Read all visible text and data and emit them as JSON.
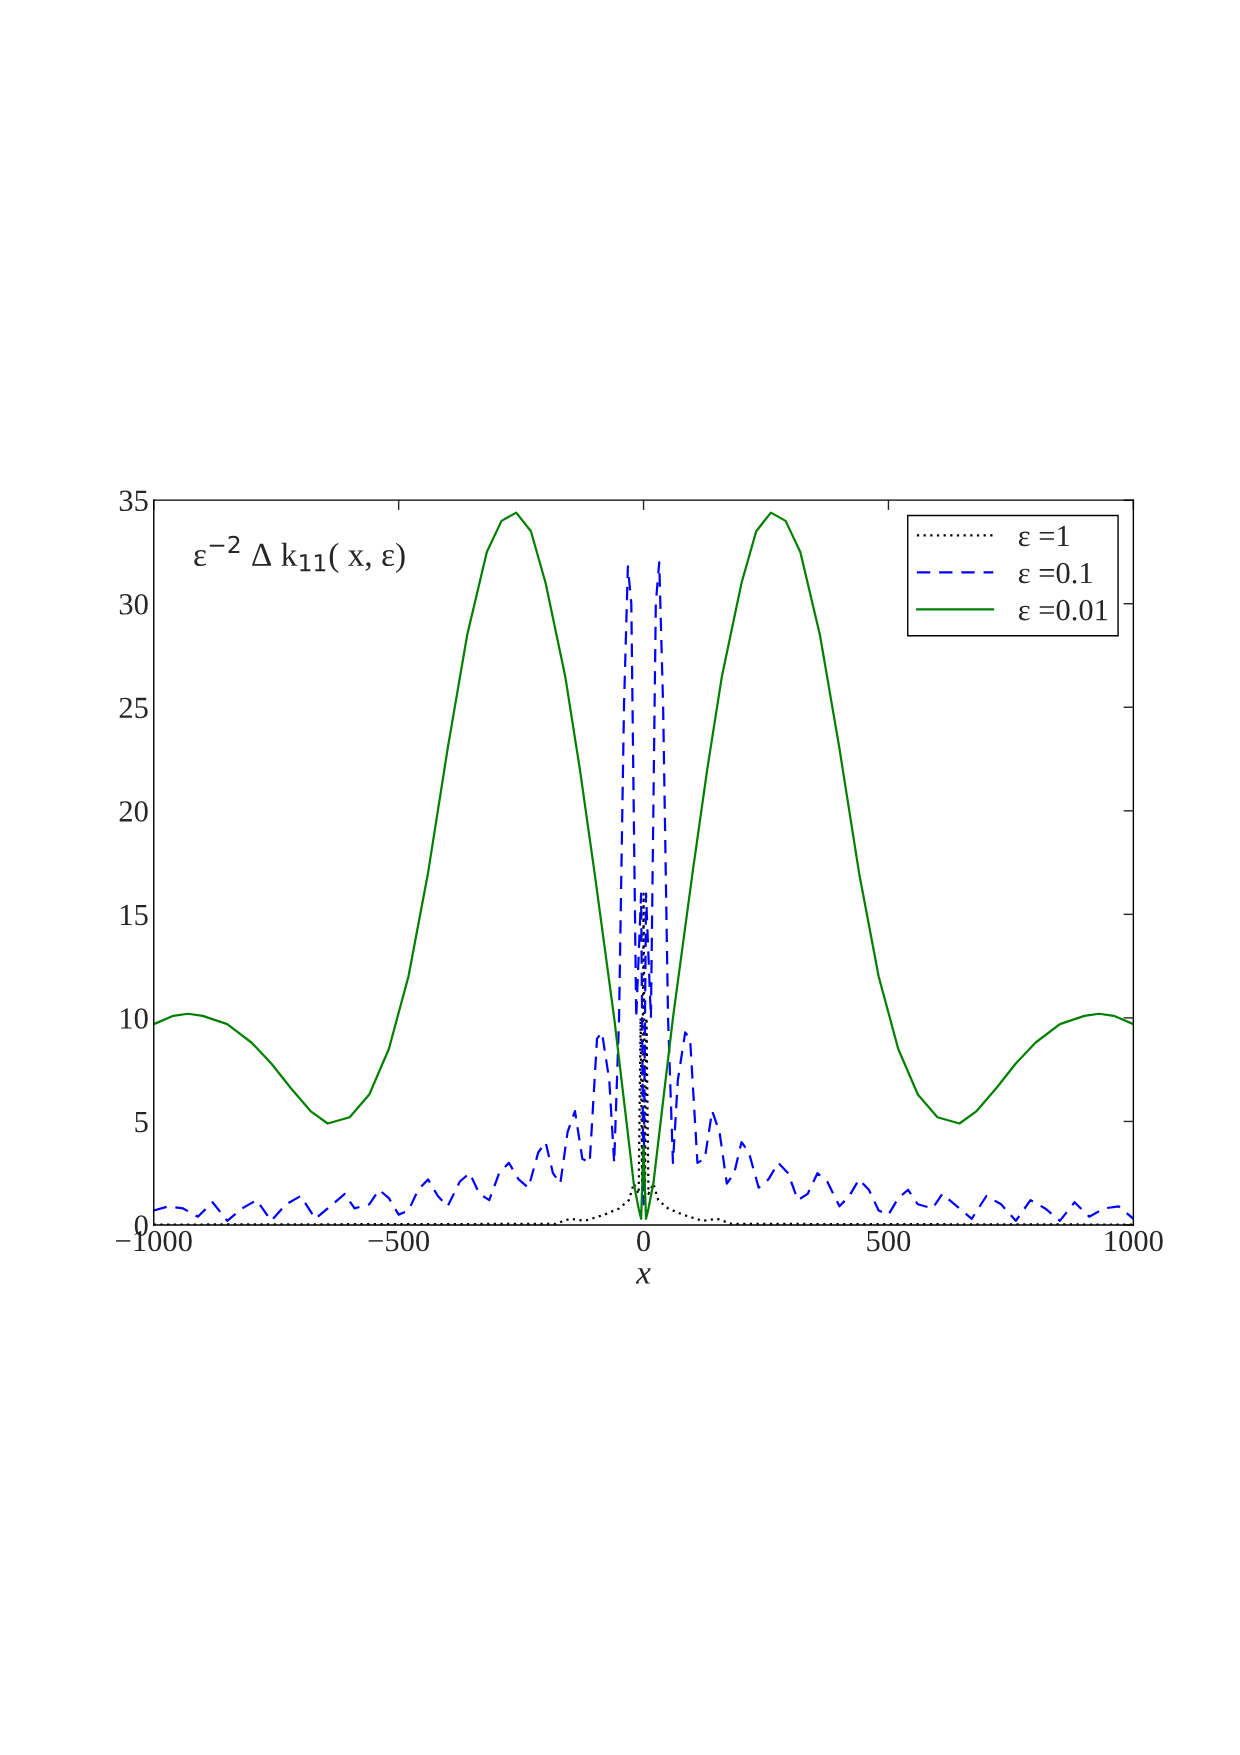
{
  "chart_data": {
    "type": "line",
    "xlabel": "x",
    "annotations": [
      "ε$^{−2}$ Δ k$_{11}$( x, ε)"
    ],
    "xlim": [
      -1000,
      1000
    ],
    "ylim": [
      0,
      35
    ],
    "xticks": [
      {
        "value": -1000,
        "label": "−1000"
      },
      {
        "value": -500,
        "label": "−500"
      },
      0,
      500,
      1000
    ],
    "yticks": [
      0,
      5,
      10,
      15,
      20,
      25,
      30,
      35
    ],
    "grid": false,
    "legend": "top right",
    "series": [
      {
        "name": "ε =1",
        "color": "#000000",
        "line_style": "dotted",
        "x": [
          -1000,
          -300,
          -180,
          -150,
          -120,
          -80,
          -50,
          -30,
          -20,
          -10,
          -6,
          -3,
          0,
          3,
          6,
          10,
          20,
          30,
          50,
          80,
          120,
          150,
          180,
          300,
          1000
        ],
        "values": [
          0.02,
          0.05,
          0.05,
          0.3,
          0.2,
          0.5,
          0.8,
          1.2,
          2,
          1.5,
          10,
          2,
          16,
          2,
          10,
          1.5,
          2,
          1.2,
          0.8,
          0.5,
          0.2,
          0.3,
          0.05,
          0.05,
          0.02
        ]
      },
      {
        "name": "ε =0.1",
        "color": "#0000ff",
        "line_style": "dashed",
        "x": [
          -1000,
          -970,
          -940,
          -910,
          -880,
          -850,
          -820,
          -790,
          -760,
          -730,
          -700,
          -670,
          -640,
          -610,
          -590,
          -560,
          -540,
          -520,
          -500,
          -480,
          -460,
          -440,
          -420,
          -400,
          -375,
          -355,
          -335,
          -315,
          -295,
          -275,
          -255,
          -235,
          -215,
          -200,
          -185,
          -170,
          -155,
          -140,
          -125,
          -110,
          -95,
          -85,
          -70,
          -60,
          -50,
          -40,
          -32,
          -25,
          -15,
          -5,
          0,
          5,
          15,
          25,
          32,
          40,
          50,
          60,
          70,
          85,
          95,
          110,
          125,
          140,
          155,
          170,
          185,
          200,
          215,
          235,
          255,
          275,
          295,
          315,
          335,
          355,
          375,
          400,
          420,
          440,
          460,
          480,
          500,
          520,
          540,
          560,
          590,
          610,
          640,
          670,
          700,
          730,
          760,
          790,
          820,
          850,
          880,
          910,
          940,
          970,
          1000
        ],
        "values": [
          0.7,
          0.9,
          0.8,
          0.4,
          1.1,
          0.2,
          0.8,
          1.2,
          0.2,
          1.0,
          1.4,
          0.3,
          0.9,
          1.5,
          0.8,
          1.0,
          1.7,
          1.3,
          0.5,
          0.7,
          1.7,
          2.2,
          1.4,
          0.9,
          2.1,
          2.5,
          1.5,
          1.2,
          2.5,
          3.0,
          2.2,
          1.8,
          3.5,
          4.0,
          2.5,
          2.0,
          4.5,
          5.5,
          3.2,
          3.0,
          9.0,
          9.3,
          7.0,
          3.0,
          10.0,
          25.0,
          31.8,
          30.0,
          10.0,
          16.0,
          1.0,
          16.0,
          10.0,
          30.0,
          32.0,
          25.0,
          10.0,
          3.0,
          7.0,
          9.3,
          9.0,
          3.0,
          3.2,
          5.5,
          4.5,
          2.0,
          2.5,
          4.0,
          3.5,
          1.8,
          2.2,
          3.0,
          2.5,
          1.2,
          1.5,
          2.5,
          2.1,
          0.9,
          1.4,
          2.2,
          1.7,
          0.7,
          0.5,
          1.3,
          1.7,
          1.0,
          0.8,
          1.5,
          0.9,
          0.3,
          1.4,
          1.0,
          0.2,
          1.2,
          0.8,
          0.2,
          1.1,
          0.4,
          0.8,
          0.9,
          0.3
        ]
      },
      {
        "name": "ε =0.01",
        "color": "#008000",
        "line_style": "solid",
        "x": [
          -1000,
          -960,
          -930,
          -900,
          -850,
          -800,
          -760,
          -720,
          -680,
          -645,
          -600,
          -560,
          -520,
          -480,
          -440,
          -400,
          -360,
          -320,
          -290,
          -260,
          -230,
          -200,
          -160,
          -130,
          -100,
          -80,
          -60,
          -40,
          -20,
          -10,
          -5,
          0,
          5,
          10,
          20,
          40,
          60,
          80,
          100,
          130,
          160,
          200,
          230,
          260,
          290,
          320,
          360,
          400,
          440,
          480,
          520,
          560,
          600,
          645,
          680,
          720,
          760,
          800,
          850,
          900,
          930,
          960,
          1000
        ],
        "values": [
          9.7,
          10.1,
          10.2,
          10.1,
          9.7,
          8.8,
          7.8,
          6.6,
          5.5,
          4.9,
          5.2,
          6.3,
          8.5,
          12,
          17,
          23,
          28.5,
          32.5,
          34,
          34.4,
          33.5,
          31,
          26.5,
          22,
          17,
          13.5,
          10,
          6,
          2,
          0.8,
          0.3,
          3.8,
          0.3,
          0.8,
          2,
          6,
          10,
          13.5,
          17,
          22,
          26.5,
          31,
          33.5,
          34.4,
          34,
          32.5,
          28.5,
          23,
          17,
          12,
          8.5,
          6.3,
          5.2,
          4.9,
          5.5,
          6.6,
          7.8,
          8.8,
          9.7,
          10.1,
          10.2,
          10.1,
          9.7
        ]
      }
    ]
  }
}
